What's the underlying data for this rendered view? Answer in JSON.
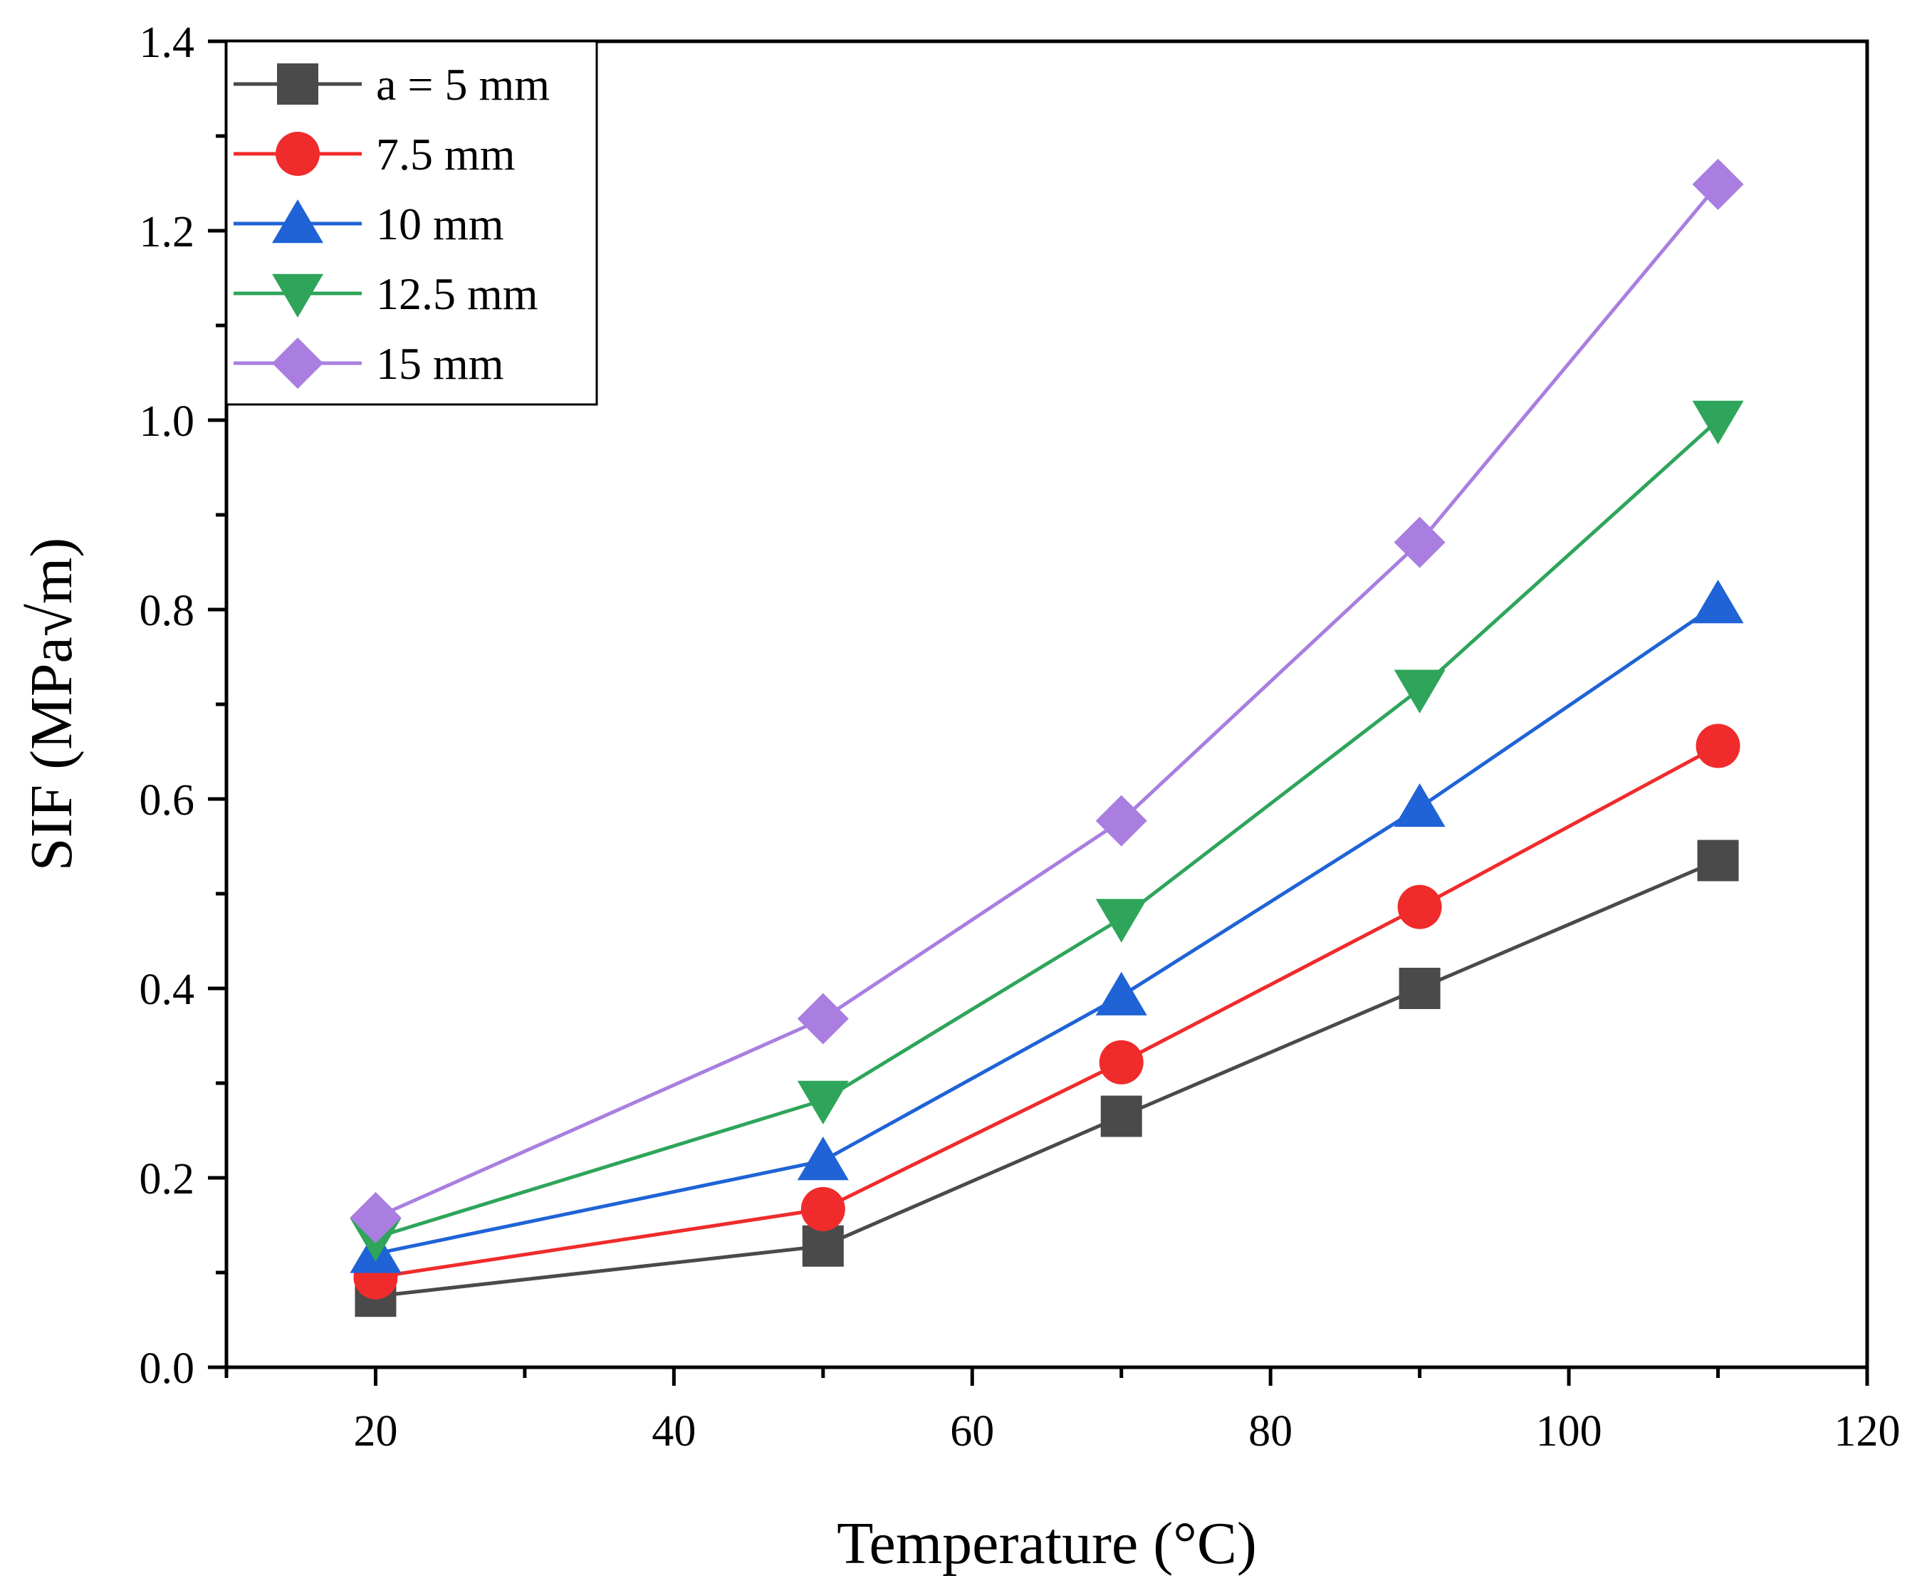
{
  "chart_data": {
    "type": "line",
    "xlabel": "Temperature (°C)",
    "ylabel": "SIF (MPa√m)",
    "xlim": [
      10,
      120
    ],
    "ylim": [
      0.0,
      1.4
    ],
    "xticks": [
      "20",
      "40",
      "60",
      "80",
      "100",
      "120"
    ],
    "yticks": [
      "0.0",
      "0.2",
      "0.4",
      "0.6",
      "0.8",
      "1.0",
      "1.2",
      "1.4"
    ],
    "legend_position": "top-left",
    "grid": false,
    "x": [
      20,
      50,
      70,
      90,
      110
    ],
    "series": [
      {
        "name": "a = 5 mm",
        "color": "#4a4a4a",
        "marker": "square",
        "values": [
          0.075,
          0.128,
          0.265,
          0.4,
          0.535
        ]
      },
      {
        "name": "7.5 mm",
        "color": "#f02b2b",
        "marker": "circle",
        "values": [
          0.095,
          0.167,
          0.322,
          0.486,
          0.656
        ]
      },
      {
        "name": "10 mm",
        "color": "#1f63d6",
        "marker": "triangle-up",
        "values": [
          0.12,
          0.218,
          0.392,
          0.591,
          0.806
        ]
      },
      {
        "name": "12.5 mm",
        "color": "#2ea55a",
        "marker": "triangle-down",
        "values": [
          0.137,
          0.282,
          0.474,
          0.716,
          1.0
        ]
      },
      {
        "name": "15 mm",
        "color": "#a97ee0",
        "marker": "diamond",
        "values": [
          0.158,
          0.368,
          0.577,
          0.871,
          1.249
        ]
      }
    ]
  }
}
